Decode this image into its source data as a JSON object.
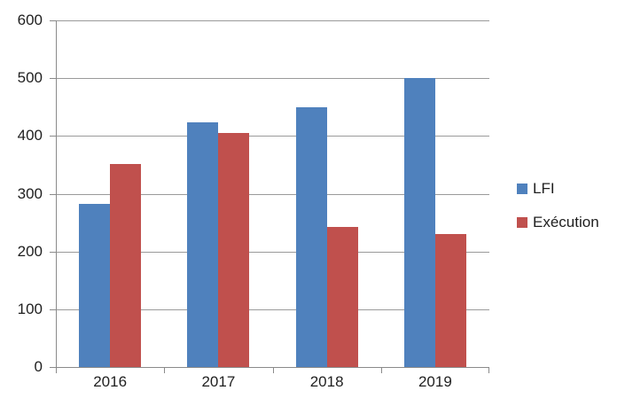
{
  "chart_data": {
    "type": "bar",
    "title": "",
    "xlabel": "",
    "ylabel": "",
    "categories": [
      "2016",
      "2017",
      "2018",
      "2019"
    ],
    "series": [
      {
        "name": "LFI",
        "color": "#4F81BD",
        "values": [
          283,
          424,
          450,
          500
        ]
      },
      {
        "name": "Exécution",
        "color": "#C0504D",
        "values": [
          352,
          405,
          243,
          230
        ]
      }
    ],
    "ylim": [
      0,
      600
    ],
    "ytick_step": 100,
    "yticks": [
      "0",
      "100",
      "200",
      "300",
      "400",
      "500",
      "600"
    ],
    "grid": true,
    "legend_position": "right"
  },
  "colors": {
    "axis": "#8A8A8A",
    "gridline": "#9A9A9A",
    "text": "#1F1F1F",
    "background": "#FFFFFF",
    "series_lfi": "#4F81BD",
    "series_execution": "#C0504D"
  }
}
